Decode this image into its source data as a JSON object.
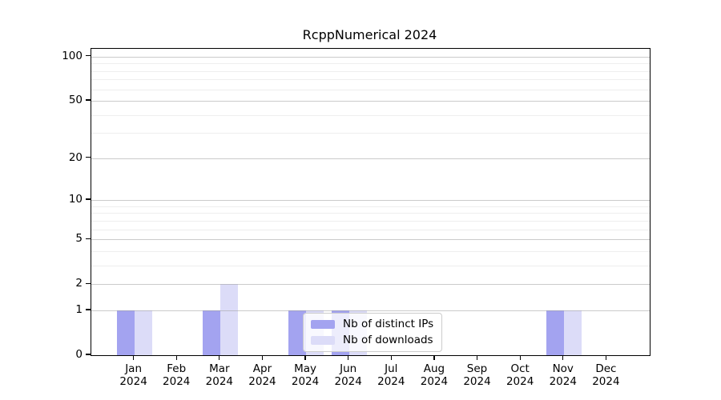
{
  "chart_data": {
    "type": "bar",
    "title": "RcppNumerical 2024",
    "categories": [
      "Jan 2024",
      "Feb 2024",
      "Mar 2024",
      "Apr 2024",
      "May 2024",
      "Jun 2024",
      "Jul 2024",
      "Aug 2024",
      "Sep 2024",
      "Oct 2024",
      "Nov 2024",
      "Dec 2024"
    ],
    "months": [
      "Jan",
      "Feb",
      "Mar",
      "Apr",
      "May",
      "Jun",
      "Jul",
      "Aug",
      "Sep",
      "Oct",
      "Nov",
      "Dec"
    ],
    "year": "2024",
    "series": [
      {
        "name": "Nb of distinct IPs",
        "color": "#a3a3f0",
        "values": [
          1,
          0,
          1,
          0,
          1,
          1,
          0,
          0,
          0,
          0,
          1,
          0
        ]
      },
      {
        "name": "Nb of downloads",
        "color": "#dcdcf8",
        "values": [
          1,
          0,
          2,
          0,
          1,
          1,
          0,
          0,
          0,
          0,
          1,
          0
        ]
      }
    ],
    "yscale": "log1p",
    "ylim": [
      0,
      113
    ],
    "yticks": [
      0,
      1,
      2,
      5,
      10,
      20,
      50,
      100
    ],
    "minor_yticks": [
      3,
      4,
      6,
      7,
      8,
      9,
      30,
      40,
      60,
      70,
      80,
      90
    ],
    "grid": true,
    "legend_position": "lower center inside plot",
    "xlabel": "",
    "ylabel": ""
  },
  "colors": {
    "background": "#ffffff",
    "spine": "#000000",
    "major_grid": "#c9c9c9",
    "minor_grid": "#ececec",
    "text": "#000000",
    "legend_border": "#cccccc"
  }
}
